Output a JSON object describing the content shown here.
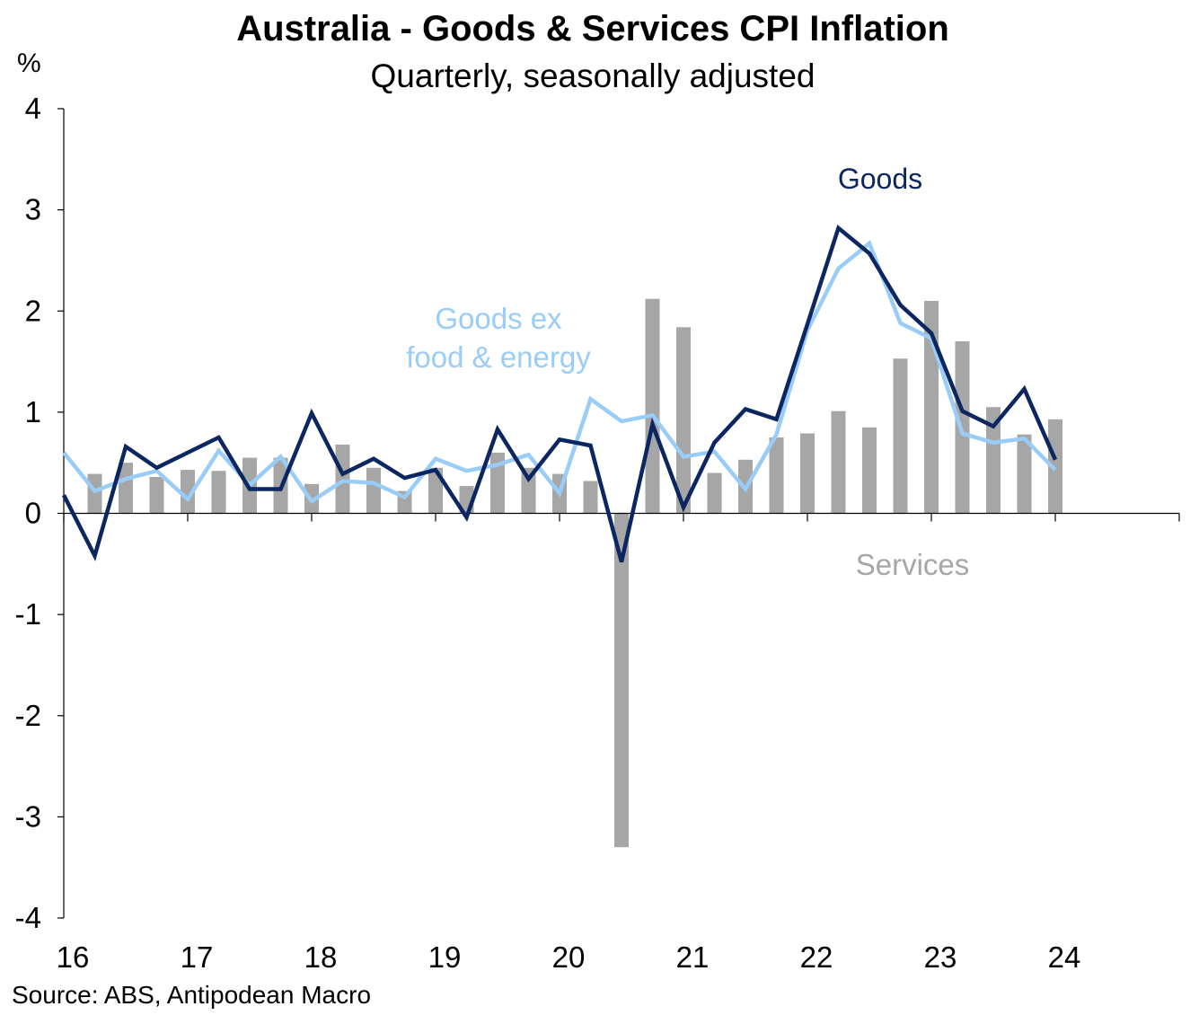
{
  "chart_data": {
    "type": "bar+line",
    "title": "Australia  - Goods & Services CPI Inflation",
    "subtitle": "Quarterly, seasonally adjusted",
    "ylabel": "%",
    "ylim": [
      -4,
      4
    ],
    "y_ticks": [
      "4",
      "3",
      "2",
      "1",
      "0",
      "-1",
      "-2",
      "-3",
      "-4"
    ],
    "x_tick_labels": [
      "16",
      "17",
      "18",
      "19",
      "20",
      "21",
      "22",
      "23",
      "24"
    ],
    "x_start": 2016.0,
    "x_end": 2025.0,
    "source": "Source: ABS, Antipodean  Macro",
    "series": [
      {
        "name": "Services",
        "label": "Services",
        "type": "bar",
        "color": "#a6a6a6",
        "values": [
          0.39,
          0.5,
          0.36,
          0.43,
          0.42,
          0.55,
          0.55,
          0.29,
          0.68,
          0.45,
          0.22,
          0.45,
          0.27,
          0.6,
          0.45,
          0.39,
          0.32,
          -3.3,
          2.12,
          1.84,
          0.4,
          0.53,
          0.75,
          0.79,
          1.01,
          0.85,
          1.53,
          2.1,
          1.7,
          1.05,
          0.78,
          0.93
        ]
      },
      {
        "name": "Goods",
        "label": "Goods",
        "type": "line",
        "color": "#0b2660",
        "values": [
          0.18,
          -0.42,
          0.66,
          0.45,
          0.6,
          0.75,
          0.24,
          0.24,
          0.99,
          0.39,
          0.54,
          0.35,
          0.43,
          -0.04,
          0.83,
          0.34,
          0.73,
          0.67,
          -0.48,
          0.88,
          0.06,
          0.7,
          1.03,
          0.93,
          1.87,
          2.82,
          2.57,
          2.06,
          1.78,
          1.01,
          0.86,
          1.23,
          0.53
        ]
      },
      {
        "name": "Goods ex food & energy",
        "label_lines": [
          "Goods ex",
          "food & energy"
        ],
        "type": "line",
        "color": "#99ccf7",
        "values": [
          0.6,
          0.22,
          0.34,
          0.42,
          0.14,
          0.62,
          0.28,
          0.56,
          0.12,
          0.32,
          0.3,
          0.16,
          0.54,
          0.42,
          0.48,
          0.58,
          0.2,
          1.13,
          0.91,
          0.97,
          0.56,
          0.61,
          0.24,
          0.78,
          1.81,
          2.42,
          2.67,
          1.88,
          1.73,
          0.79,
          0.7,
          0.74,
          0.43
        ]
      }
    ]
  }
}
